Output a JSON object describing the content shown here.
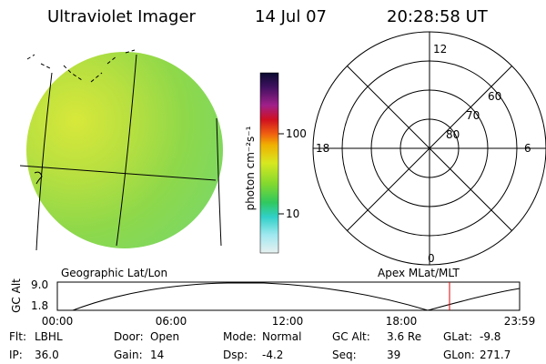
{
  "header": {
    "title": "Ultraviolet Imager",
    "date": "14 Jul 07",
    "time": "20:28:58 UT"
  },
  "colorbar": {
    "label": "photon cm⁻²s⁻¹",
    "ticks": [
      "100",
      "10"
    ]
  },
  "polar": {
    "mlt_labels": [
      "12",
      "18",
      "6",
      "0"
    ],
    "mlat_labels": [
      "60",
      "70",
      "80"
    ]
  },
  "orbit_plot": {
    "left_title": "Geographic Lat/Lon",
    "right_title": "Apex MLat/MLT",
    "y_label": "GC Alt",
    "y_ticks": [
      "9.0",
      "1.8"
    ],
    "x_ticks": [
      "00:00",
      "06:00",
      "12:00",
      "18:00",
      "23:59"
    ]
  },
  "footer": {
    "rows": [
      [
        {
          "label": "Flt:",
          "value": "LBHL"
        },
        {
          "label": "Door:",
          "value": "Open"
        },
        {
          "label": "Mode:",
          "value": "Normal"
        },
        {
          "label": "GC Alt:",
          "value": "3.6 Re"
        },
        {
          "label": "GLat:",
          "value": "-9.8"
        }
      ],
      [
        {
          "label": "IP:",
          "value": "36.0"
        },
        {
          "label": "Gain:",
          "value": "14"
        },
        {
          "label": "Dsp:",
          "value": "-4.2"
        },
        {
          "label": "Seq:",
          "value": "39"
        },
        {
          "label": "GLon:",
          "value": "271.7"
        }
      ]
    ]
  }
}
